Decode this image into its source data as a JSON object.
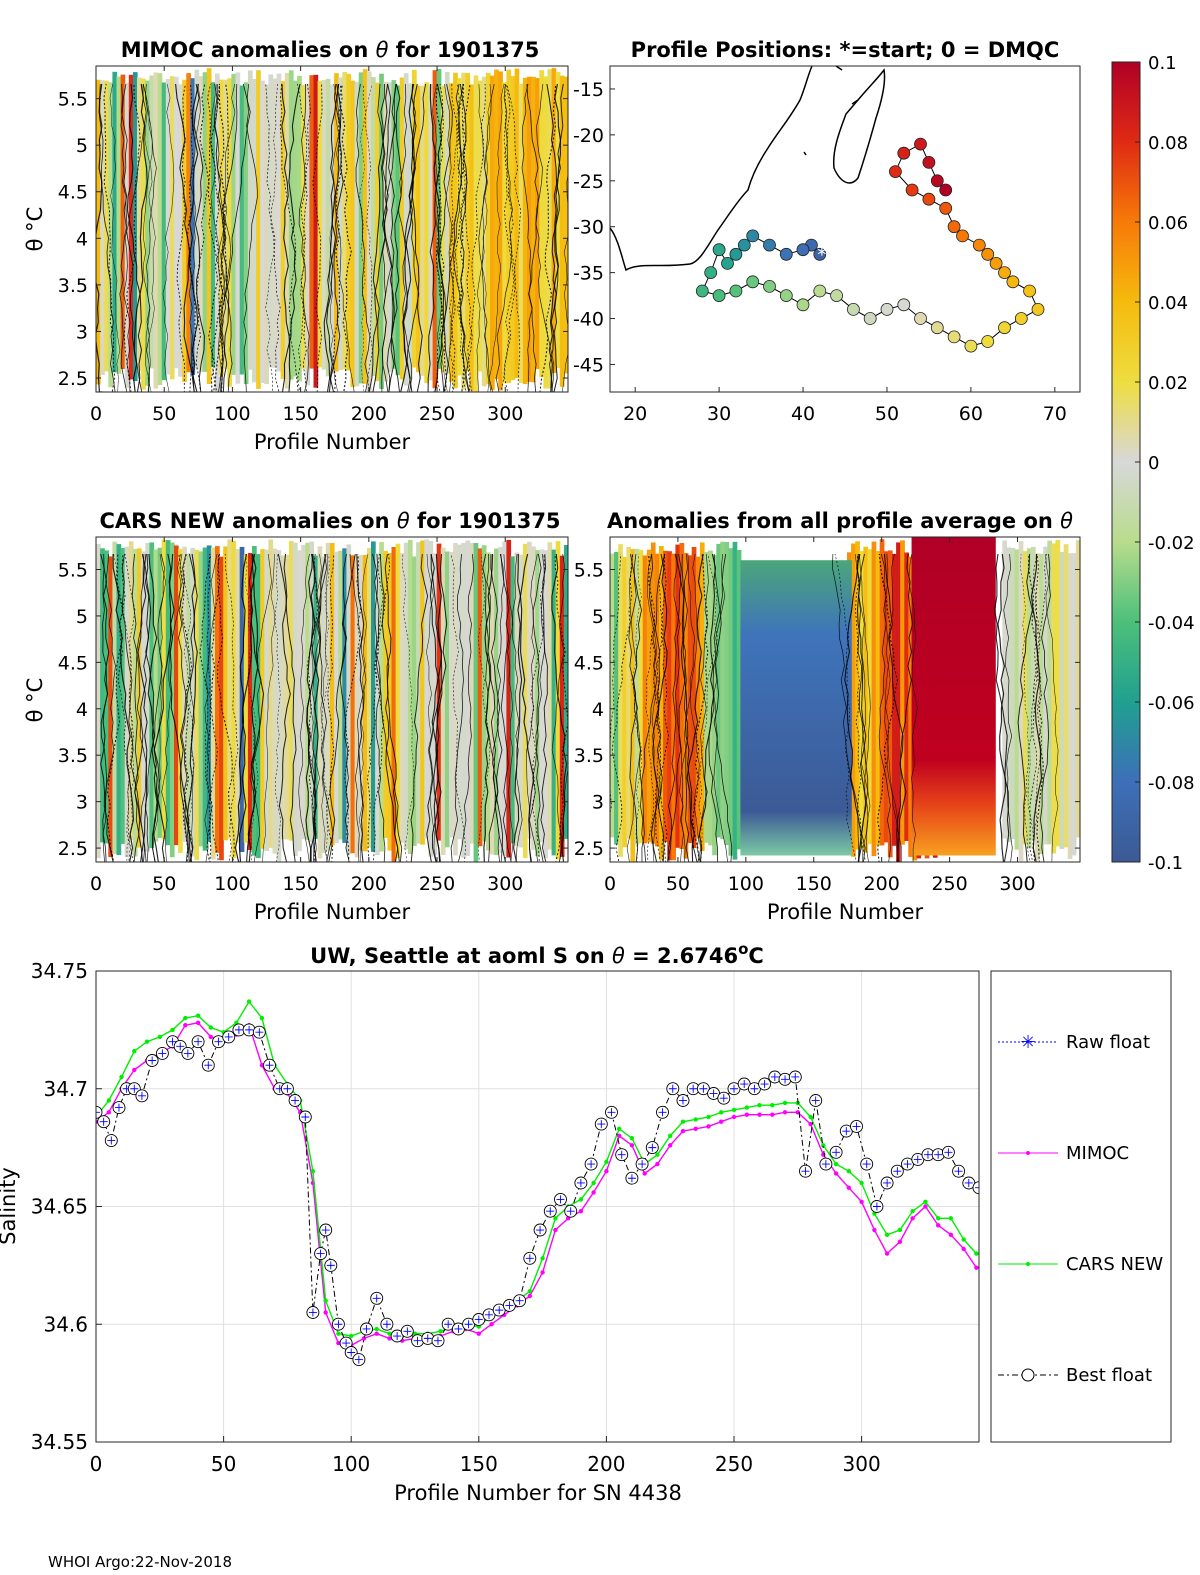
{
  "footer": "WHOI Argo:22-Nov-2018",
  "colorbar": {
    "ticks": [
      "0.1",
      "0.08",
      "0.06",
      "0.04",
      "0.02",
      "0",
      "-0.02",
      "-0.04",
      "-0.06",
      "-0.08",
      "-0.1"
    ]
  },
  "chart_data": [
    {
      "type": "heatmap",
      "title_prefix": "MIMOC anomalies on",
      "title_symbol": "θ",
      "title_suffix": "for 1901375",
      "ylabel": "θ °C",
      "xlabel": "Profile Number",
      "xticks": [
        "0",
        "50",
        "100",
        "150",
        "200",
        "250",
        "300"
      ],
      "yticks": [
        "5.5",
        "5",
        "4.5",
        "4",
        "3.5",
        "3",
        "2.5"
      ],
      "xlim": [
        0,
        346
      ],
      "ylim": [
        2.35,
        5.85
      ]
    },
    {
      "type": "scatter",
      "title": "Profile Positions: *=start; 0 = DMQC",
      "xticks": [
        "20",
        "30",
        "40",
        "50",
        "60",
        "70"
      ],
      "yticks": [
        "-15",
        "-20",
        "-25",
        "-30",
        "-35",
        "-40",
        "-45"
      ],
      "xlim": [
        17,
        73
      ],
      "ylim": [
        -48,
        -12.5
      ],
      "start_marker": "*",
      "track": [
        [
          42,
          -33
        ],
        [
          41,
          -32
        ],
        [
          40,
          -32.5
        ],
        [
          38,
          -33
        ],
        [
          36,
          -32
        ],
        [
          34,
          -31
        ],
        [
          33,
          -32
        ],
        [
          32,
          -33
        ],
        [
          31,
          -34
        ],
        [
          30,
          -32.5
        ],
        [
          29,
          -35
        ],
        [
          28,
          -37
        ],
        [
          30,
          -37.5
        ],
        [
          32,
          -37
        ],
        [
          34,
          -36
        ],
        [
          36,
          -36.5
        ],
        [
          38,
          -37.5
        ],
        [
          40,
          -38.5
        ],
        [
          42,
          -37
        ],
        [
          44,
          -37.5
        ],
        [
          46,
          -39
        ],
        [
          48,
          -40
        ],
        [
          50,
          -39
        ],
        [
          52,
          -38.5
        ],
        [
          54,
          -40
        ],
        [
          56,
          -41
        ],
        [
          58,
          -42
        ],
        [
          60,
          -43
        ],
        [
          62,
          -42.5
        ],
        [
          64,
          -41
        ],
        [
          66,
          -40
        ],
        [
          68,
          -39
        ],
        [
          67,
          -37
        ],
        [
          65,
          -36
        ],
        [
          64,
          -35
        ],
        [
          63,
          -34
        ],
        [
          62,
          -33
        ],
        [
          61,
          -32
        ],
        [
          59,
          -31
        ],
        [
          58,
          -30
        ],
        [
          57,
          -28
        ],
        [
          55,
          -27
        ],
        [
          53,
          -26
        ],
        [
          51,
          -24
        ],
        [
          52,
          -22
        ],
        [
          54,
          -21
        ],
        [
          55,
          -23
        ],
        [
          56,
          -25
        ],
        [
          57,
          -26
        ]
      ]
    },
    {
      "type": "heatmap",
      "title_prefix": "CARS NEW anomalies on",
      "title_symbol": "θ",
      "title_suffix": "for 1901375",
      "ylabel": "θ °C",
      "xlabel": "Profile Number",
      "xticks": [
        "0",
        "50",
        "100",
        "150",
        "200",
        "250",
        "300"
      ],
      "yticks": [
        "5.5",
        "5",
        "4.5",
        "4",
        "3.5",
        "3",
        "2.5"
      ],
      "xlim": [
        0,
        346
      ],
      "ylim": [
        2.35,
        5.85
      ]
    },
    {
      "type": "heatmap",
      "title_prefix": "Anomalies from all profile average on",
      "title_symbol": "θ",
      "xlabel": "Profile Number",
      "xticks": [
        "0",
        "50",
        "100",
        "150",
        "200",
        "250",
        "300"
      ],
      "yticks": [
        "5.5",
        "5",
        "4.5",
        "4",
        "3.5",
        "3",
        "2.5"
      ],
      "xlim": [
        0,
        346
      ],
      "ylim": [
        2.35,
        5.85
      ]
    },
    {
      "type": "line",
      "title_prefix": "UW, Seattle at aoml S on",
      "title_symbol": "θ",
      "title_value": "= 2.6746",
      "title_sup": "o",
      "title_unit": "C",
      "xlabel": "Profile Number for SN 4438",
      "ylabel": "Salinity",
      "xlim": [
        0,
        346
      ],
      "ylim": [
        34.55,
        34.75
      ],
      "xticks": [
        "0",
        "50",
        "100",
        "150",
        "200",
        "250",
        "300"
      ],
      "yticks": [
        "34.75",
        "34.7",
        "34.65",
        "34.6",
        "34.55"
      ],
      "legend": [
        "Raw float",
        "MIMOC",
        "CARS NEW",
        "Best float"
      ],
      "legend_position": "right",
      "series": [
        {
          "name": "MIMOC",
          "color": "#ff00ff",
          "x": [
            0,
            5,
            10,
            15,
            20,
            25,
            30,
            35,
            40,
            45,
            50,
            55,
            60,
            65,
            70,
            75,
            80,
            85,
            90,
            95,
            100,
            105,
            110,
            115,
            120,
            125,
            130,
            135,
            140,
            145,
            150,
            155,
            160,
            165,
            170,
            175,
            180,
            185,
            190,
            195,
            200,
            205,
            210,
            215,
            220,
            225,
            230,
            235,
            240,
            245,
            250,
            255,
            260,
            265,
            270,
            275,
            280,
            285,
            290,
            295,
            300,
            305,
            310,
            315,
            320,
            325,
            330,
            335,
            340,
            345
          ],
          "y": [
            34.686,
            34.69,
            34.7,
            34.708,
            34.712,
            34.715,
            34.718,
            34.727,
            34.728,
            34.722,
            34.72,
            34.723,
            34.727,
            34.71,
            34.7,
            34.698,
            34.69,
            34.66,
            34.605,
            34.592,
            34.591,
            34.594,
            34.596,
            34.594,
            34.593,
            34.594,
            34.594,
            34.595,
            34.597,
            34.598,
            34.596,
            34.6,
            34.604,
            34.608,
            34.612,
            34.622,
            34.64,
            34.645,
            34.648,
            34.656,
            34.665,
            34.68,
            34.676,
            34.664,
            34.668,
            34.676,
            34.682,
            34.683,
            34.684,
            34.686,
            34.688,
            34.689,
            34.689,
            34.689,
            34.69,
            34.69,
            34.685,
            34.672,
            34.664,
            34.658,
            34.652,
            34.64,
            34.63,
            34.635,
            34.645,
            34.65,
            34.642,
            34.638,
            34.632,
            34.624
          ]
        },
        {
          "name": "CARS NEW",
          "color": "#00ee00",
          "x": [
            0,
            5,
            10,
            15,
            20,
            25,
            30,
            35,
            40,
            45,
            50,
            55,
            60,
            65,
            70,
            75,
            80,
            85,
            90,
            95,
            100,
            105,
            110,
            115,
            120,
            125,
            130,
            135,
            140,
            145,
            150,
            155,
            160,
            165,
            170,
            175,
            180,
            185,
            190,
            195,
            200,
            205,
            210,
            215,
            220,
            225,
            230,
            235,
            240,
            245,
            250,
            255,
            260,
            265,
            270,
            275,
            280,
            285,
            290,
            295,
            300,
            305,
            310,
            315,
            320,
            325,
            330,
            335,
            340,
            345
          ],
          "y": [
            34.688,
            34.695,
            34.705,
            34.716,
            34.72,
            34.722,
            34.725,
            34.73,
            34.731,
            34.726,
            34.724,
            34.728,
            34.737,
            34.73,
            34.71,
            34.702,
            34.695,
            34.665,
            34.61,
            34.596,
            34.595,
            34.597,
            34.598,
            34.596,
            34.595,
            34.596,
            34.596,
            34.597,
            34.599,
            34.6,
            34.599,
            34.604,
            34.607,
            34.61,
            34.614,
            34.628,
            34.645,
            34.65,
            34.653,
            34.66,
            34.669,
            34.683,
            34.679,
            34.668,
            34.672,
            34.68,
            34.686,
            34.687,
            34.688,
            34.69,
            34.691,
            34.692,
            34.693,
            34.693,
            34.694,
            34.694,
            34.688,
            34.676,
            34.668,
            34.665,
            34.66,
            34.647,
            34.638,
            34.64,
            34.648,
            34.652,
            34.645,
            34.645,
            34.636,
            34.63
          ]
        },
        {
          "name": "Best float",
          "color": "#000000",
          "x": [
            0,
            3,
            6,
            9,
            12,
            15,
            18,
            22,
            26,
            30,
            33,
            36,
            40,
            44,
            48,
            52,
            56,
            60,
            64,
            68,
            72,
            75,
            78,
            82,
            85,
            88,
            90,
            92,
            95,
            98,
            100,
            103,
            106,
            110,
            114,
            118,
            122,
            126,
            130,
            134,
            138,
            142,
            146,
            150,
            154,
            158,
            162,
            166,
            170,
            174,
            178,
            182,
            186,
            190,
            194,
            198,
            202,
            206,
            210,
            214,
            218,
            222,
            226,
            230,
            234,
            238,
            242,
            246,
            250,
            254,
            258,
            262,
            266,
            270,
            274,
            278,
            282,
            286,
            290,
            294,
            298,
            302,
            306,
            310,
            314,
            318,
            322,
            326,
            330,
            334,
            338,
            342,
            346
          ],
          "y": [
            34.69,
            34.686,
            34.678,
            34.692,
            34.7,
            34.7,
            34.697,
            34.712,
            34.715,
            34.72,
            34.718,
            34.715,
            34.72,
            34.71,
            34.72,
            34.722,
            34.725,
            34.725,
            34.724,
            34.71,
            34.7,
            34.7,
            34.695,
            34.688,
            34.605,
            34.63,
            34.64,
            34.625,
            34.6,
            34.592,
            34.588,
            34.585,
            34.598,
            34.611,
            34.6,
            34.595,
            34.597,
            34.593,
            34.594,
            34.593,
            34.6,
            34.598,
            34.6,
            34.602,
            34.604,
            34.606,
            34.608,
            34.61,
            34.628,
            34.64,
            34.648,
            34.653,
            34.648,
            34.66,
            34.668,
            34.685,
            34.69,
            34.672,
            34.662,
            34.668,
            34.675,
            34.69,
            34.7,
            34.695,
            34.7,
            34.7,
            34.698,
            34.696,
            34.7,
            34.702,
            34.7,
            34.702,
            34.705,
            34.704,
            34.705,
            34.665,
            34.695,
            34.668,
            34.673,
            34.682,
            34.684,
            34.668,
            34.65,
            34.66,
            34.665,
            34.668,
            34.67,
            34.672,
            34.672,
            34.673,
            34.665,
            34.66,
            34.658
          ]
        }
      ]
    }
  ]
}
